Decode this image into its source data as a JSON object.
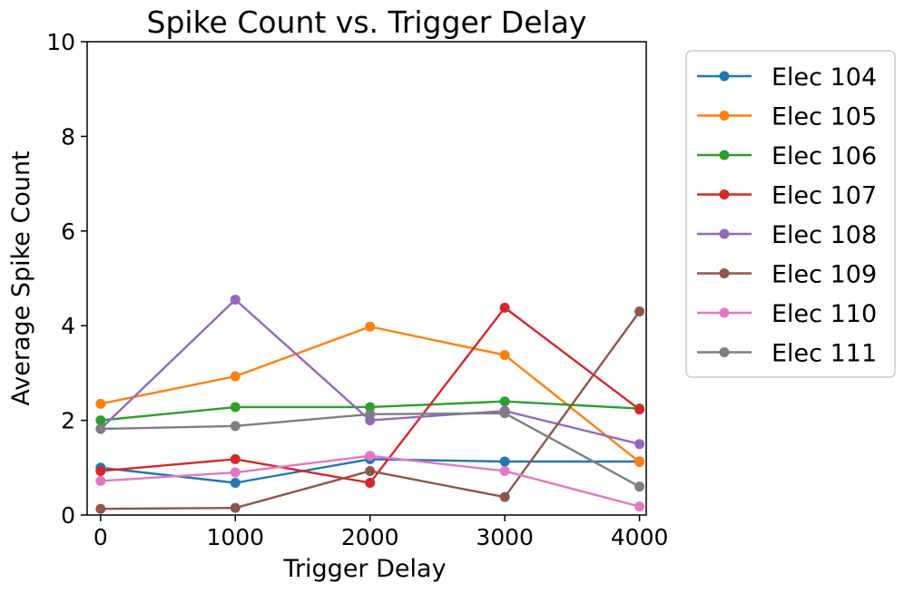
{
  "chart_data": {
    "type": "line",
    "title": "Spike Count vs. Trigger Delay",
    "xlabel": "Trigger Delay",
    "ylabel": "Average Spike Count",
    "x": [
      0,
      1000,
      2000,
      3000,
      4000
    ],
    "x_ticks": [
      "0",
      "1000",
      "2000",
      "3000",
      "4000"
    ],
    "y_ticks": [
      "0",
      "2",
      "4",
      "6",
      "8",
      "10"
    ],
    "xlim": [
      -100,
      4050
    ],
    "ylim": [
      0,
      10
    ],
    "grid": false,
    "legend_position": "outside-right",
    "series": [
      {
        "name": "Elec 104",
        "color": "#1f77b4",
        "values": [
          1.0,
          0.68,
          1.18,
          1.13,
          1.13
        ]
      },
      {
        "name": "Elec 105",
        "color": "#ff7f0e",
        "values": [
          2.35,
          2.93,
          3.98,
          3.38,
          1.12
        ]
      },
      {
        "name": "Elec 106",
        "color": "#2ca02c",
        "values": [
          2.0,
          2.28,
          2.28,
          2.4,
          2.25
        ]
      },
      {
        "name": "Elec 107",
        "color": "#d62728",
        "values": [
          0.93,
          1.18,
          0.68,
          4.38,
          2.23
        ]
      },
      {
        "name": "Elec 108",
        "color": "#9467bd",
        "values": [
          1.82,
          4.55,
          2.0,
          2.2,
          1.5
        ]
      },
      {
        "name": "Elec 109",
        "color": "#8c564b",
        "values": [
          0.13,
          0.15,
          0.93,
          0.38,
          4.3
        ]
      },
      {
        "name": "Elec 110",
        "color": "#e377c2",
        "values": [
          0.72,
          0.9,
          1.25,
          0.93,
          0.18
        ]
      },
      {
        "name": "Elec 111",
        "color": "#7f7f7f",
        "values": [
          1.82,
          1.88,
          2.13,
          2.15,
          0.6
        ]
      }
    ]
  }
}
